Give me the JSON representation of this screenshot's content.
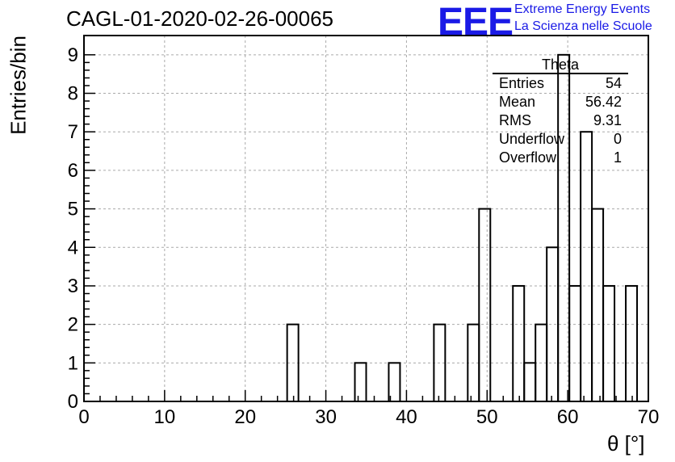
{
  "chart_data": {
    "type": "bar",
    "title": "CAGL-01-2020-02-26-00065",
    "xlabel": "θ [°]",
    "ylabel": "Entries/bin",
    "xlim": [
      0,
      70
    ],
    "ylim": [
      0,
      9.5
    ],
    "grid": true,
    "bin_width": 1.4,
    "bins": [
      {
        "x0": 25.2,
        "x1": 26.6,
        "count": 2
      },
      {
        "x0": 33.6,
        "x1": 35.0,
        "count": 1
      },
      {
        "x0": 37.8,
        "x1": 39.2,
        "count": 1
      },
      {
        "x0": 43.4,
        "x1": 44.8,
        "count": 2
      },
      {
        "x0": 47.6,
        "x1": 49.0,
        "count": 2
      },
      {
        "x0": 49.0,
        "x1": 50.4,
        "count": 5
      },
      {
        "x0": 53.2,
        "x1": 54.6,
        "count": 3
      },
      {
        "x0": 54.6,
        "x1": 56.0,
        "count": 1
      },
      {
        "x0": 56.0,
        "x1": 57.4,
        "count": 2
      },
      {
        "x0": 57.4,
        "x1": 58.8,
        "count": 4
      },
      {
        "x0": 58.8,
        "x1": 60.2,
        "count": 9
      },
      {
        "x0": 60.2,
        "x1": 61.6,
        "count": 3
      },
      {
        "x0": 61.6,
        "x1": 63.0,
        "count": 7
      },
      {
        "x0": 63.0,
        "x1": 64.4,
        "count": 5
      },
      {
        "x0": 64.4,
        "x1": 65.8,
        "count": 3
      },
      {
        "x0": 67.2,
        "x1": 68.6,
        "count": 3
      }
    ],
    "x_ticks": [
      0,
      10,
      20,
      30,
      40,
      50,
      60,
      70
    ],
    "y_ticks": [
      0,
      1,
      2,
      3,
      4,
      5,
      6,
      7,
      8,
      9
    ],
    "stats_box": {
      "title": "Theta",
      "rows": [
        {
          "label": "Entries",
          "value": "54"
        },
        {
          "label": "Mean",
          "value": "56.42"
        },
        {
          "label": "RMS",
          "value": "9.31"
        },
        {
          "label": "Underflow",
          "value": "0"
        },
        {
          "label": "Overflow",
          "value": "1"
        }
      ]
    }
  },
  "logo": {
    "text": "EEE",
    "line1": "Extreme Energy Events",
    "line2": "La Scienza nelle Scuole",
    "color": "#1a1ae6"
  }
}
